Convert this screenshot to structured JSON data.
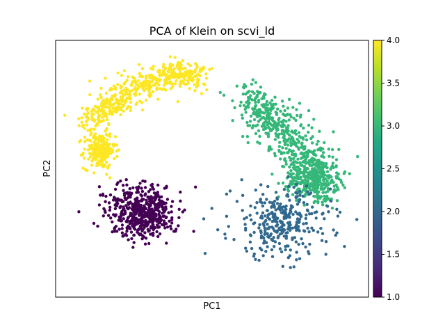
{
  "chart_data": {
    "type": "scatter",
    "title": "PCA of Klein on scvi_ld",
    "xlabel": "PC1",
    "ylabel": "PC2",
    "x_ticks_shown": false,
    "y_ticks_shown": false,
    "grid": false,
    "colormap": "viridis",
    "colorbar": {
      "range": [
        1.0,
        4.0
      ],
      "ticks": [
        "1.0",
        "1.5",
        "2.0",
        "2.5",
        "3.0",
        "3.5",
        "4.0"
      ]
    },
    "clusters": [
      {
        "value": 4.0,
        "color": "#fde725",
        "n": 520,
        "shape": "arc",
        "arc": [
          [
            0.1,
            0.68
          ],
          [
            0.18,
            0.75
          ],
          [
            0.28,
            0.83
          ],
          [
            0.38,
            0.87
          ],
          [
            0.45,
            0.86
          ]
        ],
        "spread": 0.028,
        "blob_center": [
          0.14,
          0.57
        ],
        "blob_n": 220,
        "blob_sd": [
          0.025,
          0.035
        ]
      },
      {
        "value": 1.0,
        "color": "#440154",
        "n": 520,
        "center": [
          0.28,
          0.33
        ],
        "sd": [
          0.055,
          0.05
        ],
        "rot": -0.55
      },
      {
        "value": 3.0,
        "color": "#35b779",
        "n": 600,
        "shape": "arc",
        "arc": [
          [
            0.62,
            0.77
          ],
          [
            0.68,
            0.7
          ],
          [
            0.76,
            0.61
          ],
          [
            0.82,
            0.5
          ],
          [
            0.85,
            0.42
          ]
        ],
        "spread": 0.04,
        "blob_center": [
          0.82,
          0.46
        ],
        "blob_n": 220,
        "blob_sd": [
          0.04,
          0.04
        ]
      },
      {
        "value": 2.0,
        "color": "#31688e",
        "n": 320,
        "center": [
          0.72,
          0.29
        ],
        "sd": [
          0.08,
          0.07
        ],
        "rot": 0.0
      }
    ]
  }
}
